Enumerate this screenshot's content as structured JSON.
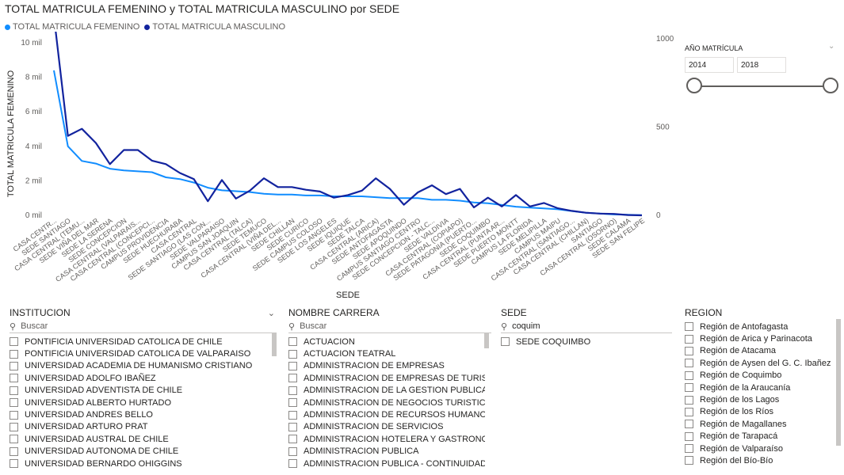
{
  "chart": {
    "title": "TOTAL MATRICULA FEMENINO y TOTAL MATRICULA MASCULINO por SEDE",
    "legend": [
      {
        "label": "TOTAL MATRICULA FEMENINO",
        "color": "#118DFF"
      },
      {
        "label": "TOTAL MATRICULA MASCULINO",
        "color": "#12239E"
      }
    ]
  },
  "chart_data": {
    "type": "line",
    "title": "TOTAL MATRICULA FEMENINO y TOTAL MATRICULA MASCULINO por SEDE",
    "xlabel": "SEDE",
    "ylabel": "TOTAL MATRICULA FEMENINO",
    "y_ticks": [
      "0 mil",
      "2 mil",
      "4 mil",
      "6 mil",
      "8 mil",
      "10 mil"
    ],
    "ylim": [
      0,
      10000
    ],
    "y2_ticks": [
      "0",
      "500",
      "1000"
    ],
    "y2lim": [
      0,
      1000
    ],
    "categories": [
      "CASA CENTR...",
      "SEDE SANTIAGO",
      "CASA CENTRAL (TEMU...",
      "SEDE VIÑA DEL MAR",
      "SEDE LA SERENA",
      "SEDE CONCEPCION",
      "CASA CENTRAL (VALPARAIS...",
      "CASA CENTRAL (CONCEPCI...",
      "CAMPUS PROVIDENCIA",
      "SEDE HUECHURABA",
      "CASA CENTRAL",
      "SEDE SANTIAGO (LAS CON...",
      "SEDE VALPARAISO",
      "CAMPUS SAN JOAQUIN",
      "CASA CENTRAL (TALCA)",
      "SEDE TEMUCO",
      "CASA CENTRAL (VIÑA DEL...",
      "SEDE CHILLAN",
      "SEDE CURICO",
      "SEDE CAMPUS COLOSO",
      "SEDE LOS ANGELES",
      "SEDE IQUIQUE",
      "SEDE TALCA",
      "CASA CENTRAL (ARICA)",
      "SEDE ANTOFAGASTA",
      "SEDE APOQUINDO",
      "CAMPUS SANTIAGO CENTRO",
      "SEDE CONCEPCION - TALC...",
      "SEDE VALDIVIA",
      "CASA CENTRAL (COPIAPO)",
      "SEDE PATAGONIA (PUERTO...",
      "SEDE COQUIMBO",
      "CASA CENTRAL (PUNTA AR...",
      "SEDE PUERTO MONTT",
      "CAMPUS LA FLORIDA",
      "SEDE MELIPILLA",
      "CAMPUS MAIPU",
      "CASA CENTRAL (SANTIAGO...",
      "CASA CENTRAL (CHILLAN)",
      "SANTIAGO",
      "CASA CENTRAL (OSORNO)",
      "SEDE CALAMA",
      "SEDE SAN FELIPE"
    ],
    "series": [
      {
        "name": "TOTAL MATRICULA FEMENINO",
        "axis": "left",
        "color": "#118DFF",
        "values": [
          8400,
          4000,
          3150,
          3000,
          2700,
          2600,
          2550,
          2500,
          2200,
          2100,
          1900,
          1600,
          1450,
          1400,
          1350,
          1250,
          1200,
          1200,
          1150,
          1150,
          1100,
          1100,
          1100,
          1050,
          1000,
          1000,
          1000,
          900,
          900,
          850,
          750,
          700,
          600,
          500,
          450,
          400,
          350,
          250,
          150,
          100,
          50,
          30,
          10
        ]
      },
      {
        "name": "TOTAL MATRICULA MASCULINO",
        "axis": "right",
        "color": "#12239E",
        "values": [
          1130,
          450,
          490,
          410,
          290,
          370,
          370,
          310,
          290,
          240,
          205,
          80,
          200,
          95,
          140,
          210,
          160,
          160,
          145,
          135,
          100,
          115,
          140,
          210,
          150,
          60,
          130,
          170,
          120,
          150,
          45,
          100,
          50,
          115,
          50,
          70,
          40,
          25,
          15,
          10,
          8,
          2,
          0
        ]
      }
    ]
  },
  "year_slicer": {
    "title": "AÑO MATRÍCULA",
    "from": "2014",
    "to": "2018",
    "range_fraction": [
      0,
      1
    ]
  },
  "slicers": {
    "institucion": {
      "title": "INSTITUCION",
      "search_placeholder": "Buscar",
      "items": [
        "PONTIFICIA UNIVERSIDAD CATOLICA DE CHILE",
        "PONTIFICIA UNIVERSIDAD CATOLICA DE VALPARAISO",
        "UNIVERSIDAD ACADEMIA DE HUMANISMO CRISTIANO",
        "UNIVERSIDAD ADOLFO IBAÑEZ",
        "UNIVERSIDAD ADVENTISTA DE CHILE",
        "UNIVERSIDAD ALBERTO HURTADO",
        "UNIVERSIDAD ANDRES BELLO",
        "UNIVERSIDAD ARTURO PRAT",
        "UNIVERSIDAD AUSTRAL DE CHILE",
        "UNIVERSIDAD AUTONOMA DE CHILE",
        "UNIVERSIDAD BERNARDO OHIGGINS"
      ]
    },
    "carrera": {
      "title": "NOMBRE CARRERA",
      "search_placeholder": "Buscar",
      "items": [
        "ACTUACION",
        "ACTUACION TEATRAL",
        "ADMINISTRACION DE EMPRESAS",
        "ADMINISTRACION DE EMPRESAS DE TURISMO",
        "ADMINISTRACION DE LA GESTION PUBLICA",
        "ADMINISTRACION DE NEGOCIOS TURISTICOS...",
        "ADMINISTRACION DE RECURSOS HUMANOS ...",
        "ADMINISTRACION DE SERVICIOS",
        "ADMINISTRACION HOTELERA Y GASTRONOM...",
        "ADMINISTRACION PUBLICA",
        "ADMINISTRACION PUBLICA - CONTINUIDAD"
      ]
    },
    "sede": {
      "title": "SEDE",
      "search_value": "coquim",
      "items": [
        "SEDE COQUIMBO"
      ]
    },
    "region": {
      "title": "REGION",
      "items": [
        "Región de Antofagasta",
        "Región de Arica y Parinacota",
        "Región de Atacama",
        "Región de Aysen del G. C. Ibañez",
        "Región de Coquimbo",
        "Región de la Araucanía",
        "Región de los Lagos",
        "Región de los Ríos",
        "Región de Magallanes",
        "Región de Tarapacá",
        "Región de Valparaíso",
        "Región del Bío-Bío"
      ]
    }
  },
  "icons": {
    "search": "search-icon",
    "chevron": "chevron-down-icon"
  }
}
